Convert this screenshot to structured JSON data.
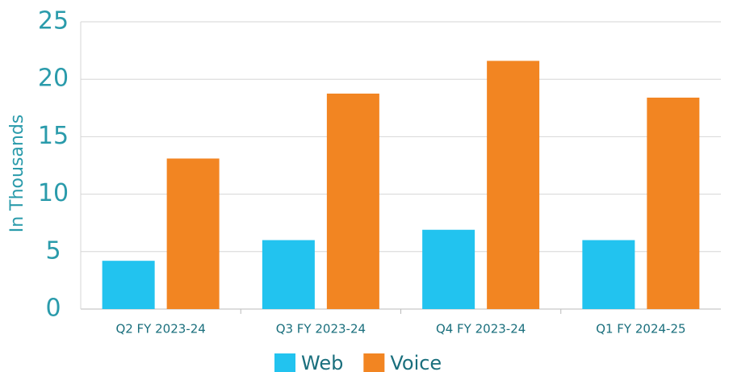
{
  "chart_data": {
    "type": "bar",
    "y_label": "In Thousands",
    "categories": [
      "Q2 FY 2023-24",
      "Q3 FY 2023-24",
      "Q4 FY 2023-24",
      "Q1 FY 2024-25"
    ],
    "series": [
      {
        "name": "Web",
        "color": "#22c3ef",
        "values": [
          4.2,
          6.0,
          6.9,
          6.0
        ]
      },
      {
        "name": "Voice",
        "color": "#f28522",
        "values": [
          13.1,
          18.75,
          21.6,
          18.4
        ]
      }
    ],
    "ylim": [
      0,
      25
    ],
    "yticks": [
      0,
      5,
      10,
      15,
      20,
      25
    ],
    "grid": true,
    "legend": "bottom"
  }
}
